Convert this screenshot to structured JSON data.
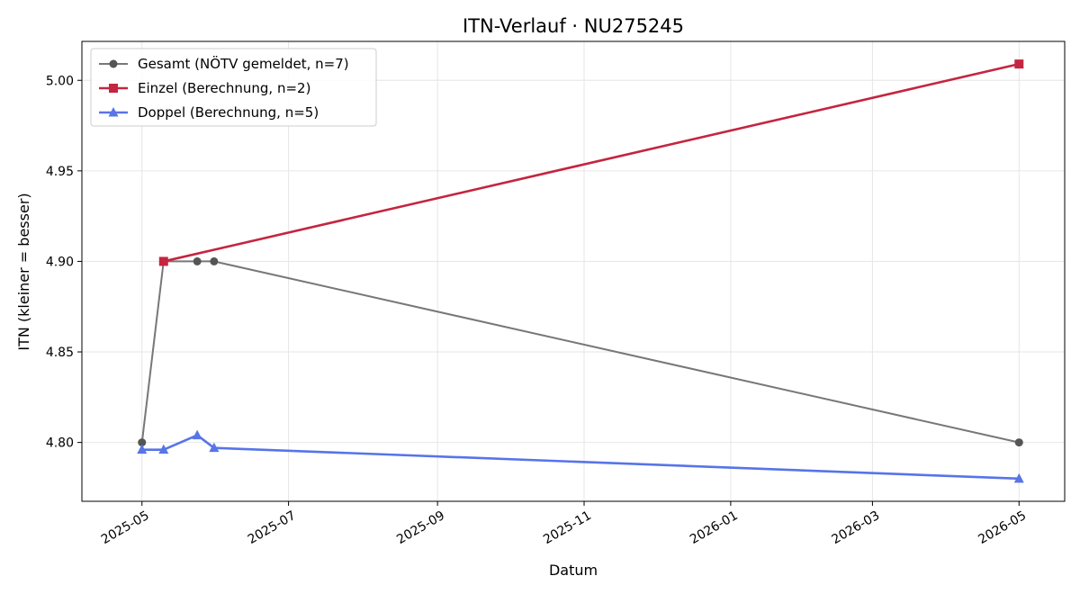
{
  "chart_data": {
    "type": "line",
    "title": "ITN-Verlauf · NU275245",
    "xlabel": "Datum",
    "ylabel": "ITN  (kleiner = besser)",
    "x_type": "date",
    "xlim": [
      "2025-04-06",
      "2026-05-20"
    ],
    "ylim": [
      4.7675,
      5.0215
    ],
    "x_ticks": [
      "2025-05-01",
      "2025-07-01",
      "2025-09-01",
      "2025-11-01",
      "2026-01-01",
      "2026-03-01",
      "2026-05-01"
    ],
    "x_tick_labels": [
      "2025-05",
      "2025-07",
      "2025-09",
      "2025-11",
      "2026-01",
      "2026-03",
      "2026-05"
    ],
    "y_ticks": [
      4.8,
      4.85,
      4.9,
      4.95,
      5.0
    ],
    "y_tick_labels": [
      "4.80",
      "4.85",
      "4.90",
      "4.95",
      "5.00"
    ],
    "grid": true,
    "legend_position": "top-left",
    "series": [
      {
        "name": "Gesamt (NÖTV gemeldet, n=7)",
        "color": "#777777",
        "marker": "circle",
        "points": [
          {
            "x": "2025-05-01",
            "y": 4.8
          },
          {
            "x": "2025-05-10",
            "y": 4.9
          },
          {
            "x": "2025-05-24",
            "y": 4.9
          },
          {
            "x": "2025-05-31",
            "y": 4.9
          },
          {
            "x": "2026-05-01",
            "y": 4.8
          }
        ]
      },
      {
        "name": "Einzel (Berechnung, n=2)",
        "color": "#c42540",
        "marker": "square",
        "points": [
          {
            "x": "2025-05-10",
            "y": 4.9
          },
          {
            "x": "2026-05-01",
            "y": 5.009
          }
        ]
      },
      {
        "name": "Doppel (Berechnung, n=5)",
        "color": "#5774e8",
        "marker": "triangle",
        "points": [
          {
            "x": "2025-05-01",
            "y": 4.796
          },
          {
            "x": "2025-05-10",
            "y": 4.796
          },
          {
            "x": "2025-05-24",
            "y": 4.804
          },
          {
            "x": "2025-05-31",
            "y": 4.797
          },
          {
            "x": "2026-05-01",
            "y": 4.78
          }
        ]
      }
    ]
  }
}
